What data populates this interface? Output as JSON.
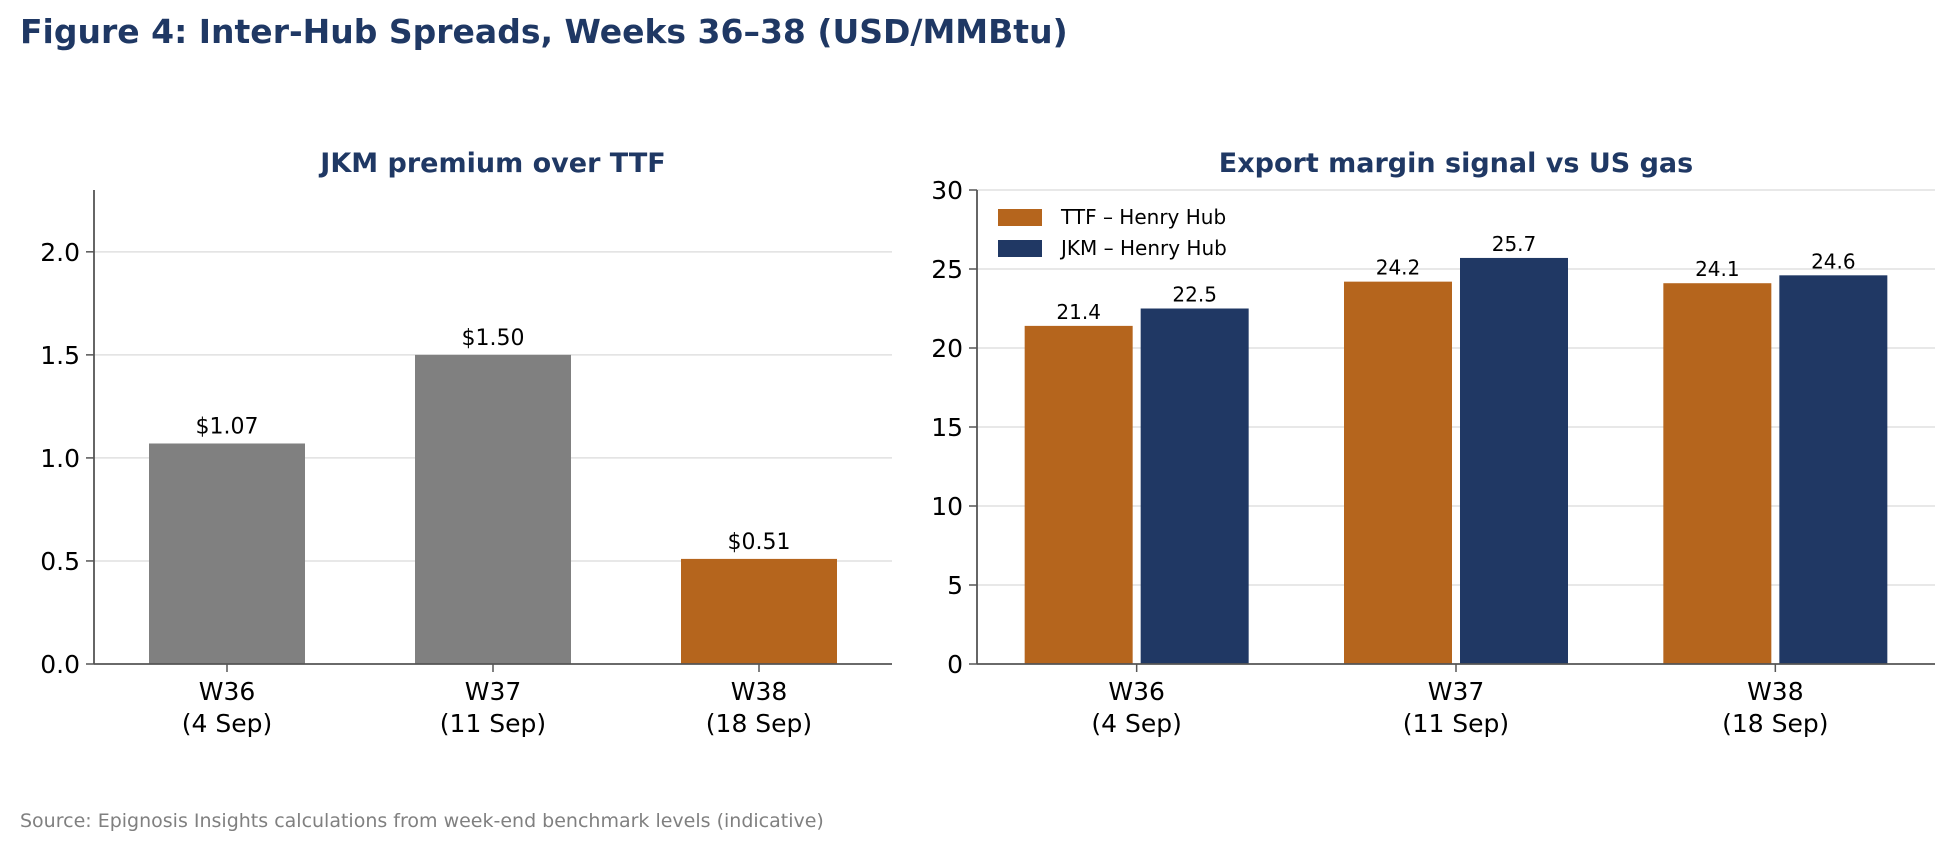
{
  "figure": {
    "title": "Figure 4: Inter-Hub Spreads, Weeks 36–38 (USD/MMBtu)",
    "source": "Source: Epignosis Insights calculations from week-end benchmark levels (indicative)"
  },
  "colors": {
    "title": "#1f3864",
    "gray_bar": "#808080",
    "orange": "#b5651d",
    "navy": "#203864",
    "grid": "#e0e0e0",
    "axis": "#555555"
  },
  "chart_data": [
    {
      "type": "bar",
      "title": "JKM premium over TTF",
      "categories": [
        "W36\n(4 Sep)",
        "W37\n(11 Sep)",
        "W38\n(18 Sep)"
      ],
      "values": [
        1.07,
        1.5,
        0.51
      ],
      "data_labels": [
        "$1.07",
        "$1.50",
        "$0.51"
      ],
      "bar_colors": [
        "#808080",
        "#808080",
        "#b5651d"
      ],
      "ylim": [
        0,
        2.3
      ],
      "yticks": [
        0.0,
        0.5,
        1.0,
        1.5,
        2.0
      ],
      "ytick_labels": [
        "0.0",
        "0.5",
        "1.0",
        "1.5",
        "2.0"
      ],
      "grid": true
    },
    {
      "type": "bar",
      "title": "Export margin signal vs US gas",
      "categories": [
        "W36\n(4 Sep)",
        "W37\n(11 Sep)",
        "W38\n(18 Sep)"
      ],
      "series": [
        {
          "name": "TTF – Henry Hub",
          "values": [
            21.4,
            24.2,
            24.1
          ],
          "labels": [
            "21.4",
            "24.2",
            "24.1"
          ],
          "color": "#b5651d"
        },
        {
          "name": "JKM – Henry Hub",
          "values": [
            22.5,
            25.7,
            24.6
          ],
          "labels": [
            "22.5",
            "25.7",
            "24.6"
          ],
          "color": "#203864"
        }
      ],
      "ylim": [
        0,
        30
      ],
      "yticks": [
        0,
        5,
        10,
        15,
        20,
        25,
        30
      ],
      "ytick_labels": [
        "0",
        "5",
        "10",
        "15",
        "20",
        "25",
        "30"
      ],
      "legend": "top-left",
      "grid": true
    }
  ]
}
